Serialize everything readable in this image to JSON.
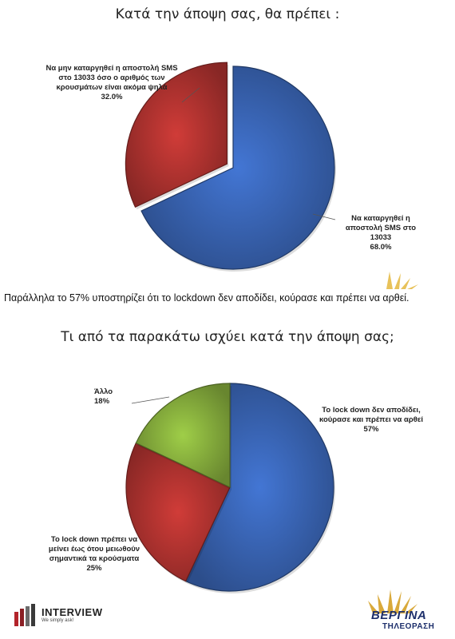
{
  "chart_data": [
    {
      "type": "pie",
      "title": "Κατά την άποψη σας, θα πρέπει :",
      "slices": [
        {
          "label_lines": [
            "Να καταργηθεί η",
            "αποστολή SMS στο",
            "13033"
          ],
          "value": 68.0,
          "pct_label": "68.0%",
          "color": "#3a67b8"
        },
        {
          "label_lines": [
            "Να μην καταργηθεί η αποστολή SMS",
            "στο 13033 όσο ο αριθμός των",
            "κρουσμάτων είναι ακόμα ψηλά"
          ],
          "value": 32.0,
          "pct_label": "32.0%",
          "color": "#b53431"
        }
      ]
    },
    {
      "type": "pie",
      "title": "Τι από τα παρακάτω ισχύει κατά την άποψη σας;",
      "slices": [
        {
          "label_lines": [
            "To lock down δεν αποδίδει,",
            "κούρασε και πρέπει να αρθεί"
          ],
          "value": 57,
          "pct_label": "57%",
          "color": "#3a67b8"
        },
        {
          "label_lines": [
            "To lock down πρέπει να",
            "μείνει έως ότου μειωθούν",
            "σημαντικά τα κρούσματα"
          ],
          "value": 25,
          "pct_label": "25%",
          "color": "#b53431"
        },
        {
          "label_lines": [
            "Άλλο"
          ],
          "value": 18,
          "pct_label": "18%",
          "color": "#8ab33f"
        }
      ]
    }
  ],
  "paragraph": "Παράλληλα το 57% υποστηρίζει ότι το lockdown δεν αποδίδει, κούρασε και πρέπει να αρθεί.",
  "logos": {
    "interview": {
      "name": "INTERVIEW",
      "tagline": "We simply ask!"
    },
    "vergina": {
      "name": "ΒΕΡΓΙΝΑ",
      "subtitle": "ΤΗΛΕΟΡΑΣΗ"
    }
  }
}
